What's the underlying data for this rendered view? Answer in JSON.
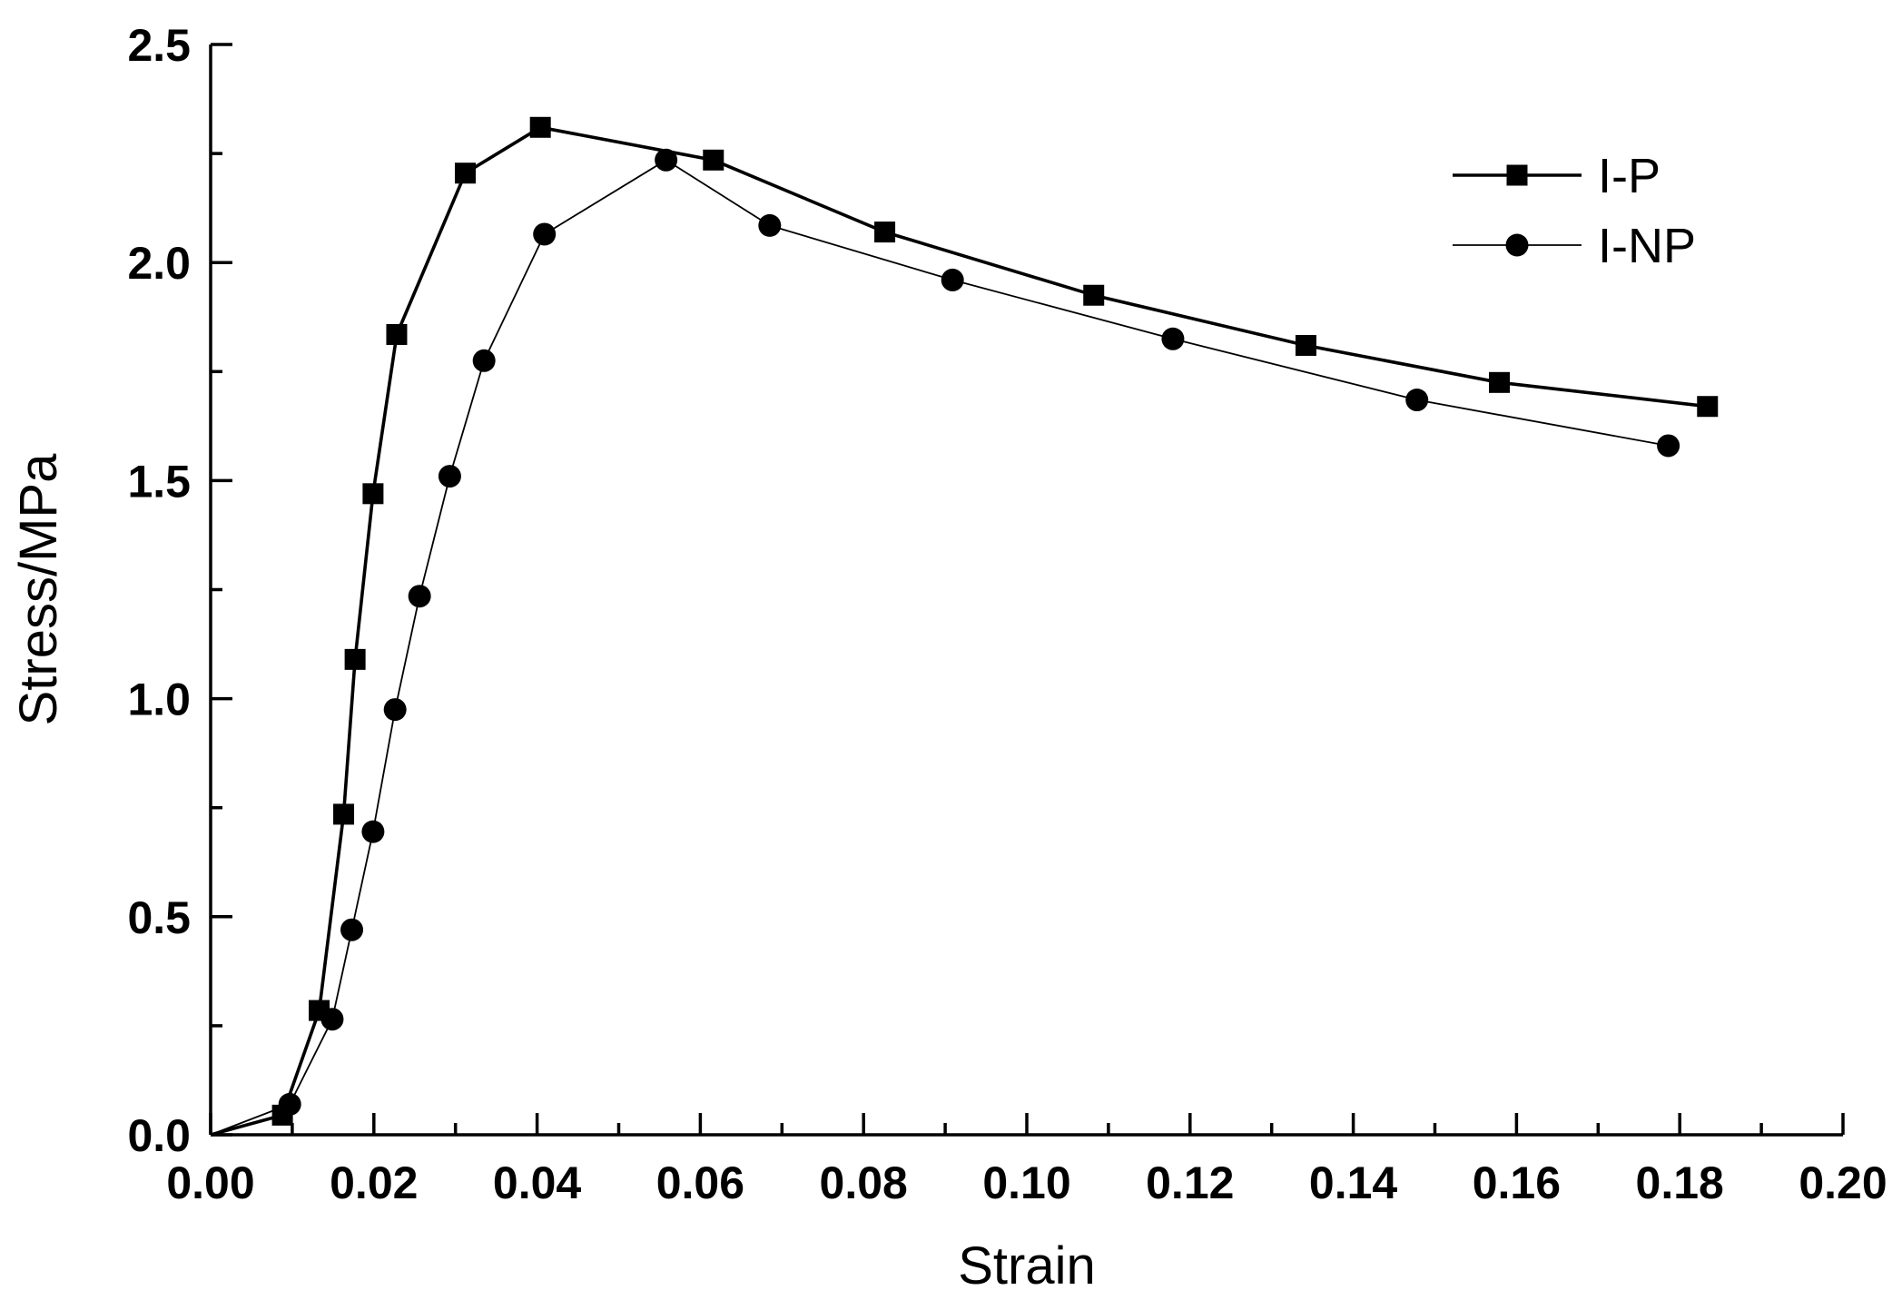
{
  "chart_data": {
    "type": "line",
    "title": "",
    "xlabel": "Strain",
    "ylabel": "Stress/MPa",
    "xlim": [
      0.0,
      0.2
    ],
    "ylim": [
      0.0,
      2.5
    ],
    "x_ticks": [
      "0.00",
      "0.02",
      "0.04",
      "0.06",
      "0.08",
      "0.10",
      "0.12",
      "0.14",
      "0.16",
      "0.18",
      "0.20"
    ],
    "x_tick_values": [
      0.0,
      0.02,
      0.04,
      0.06,
      0.08,
      0.1,
      0.12,
      0.14,
      0.16,
      0.18,
      0.2
    ],
    "x_minor_step": 0.01,
    "y_ticks": [
      "0.0",
      "0.5",
      "1.0",
      "1.5",
      "2.0",
      "2.5"
    ],
    "y_tick_values": [
      0.0,
      0.5,
      1.0,
      1.5,
      2.0,
      2.5
    ],
    "y_minor_step": 0.25,
    "grid": false,
    "legend_position": "top-right",
    "series": [
      {
        "name": "I-P",
        "marker": "square",
        "line_weight": "thick",
        "color": "#000000",
        "points": [
          [
            0.0,
            0.0
          ],
          [
            0.0088,
            0.045
          ],
          [
            0.0133,
            0.285
          ],
          [
            0.0163,
            0.735
          ],
          [
            0.0177,
            1.09
          ],
          [
            0.0199,
            1.47
          ],
          [
            0.0228,
            1.835
          ],
          [
            0.0312,
            2.205
          ],
          [
            0.0404,
            2.31
          ],
          [
            0.0616,
            2.235
          ],
          [
            0.0826,
            2.07
          ],
          [
            0.1082,
            1.925
          ],
          [
            0.1342,
            1.81
          ],
          [
            0.1579,
            1.725
          ],
          [
            0.1834,
            1.67
          ]
        ]
      },
      {
        "name": "I-NP",
        "marker": "circle",
        "line_weight": "thin",
        "color": "#000000",
        "points": [
          [
            0.0,
            0.0
          ],
          [
            0.0097,
            0.07
          ],
          [
            0.0149,
            0.265
          ],
          [
            0.0173,
            0.47
          ],
          [
            0.0199,
            0.695
          ],
          [
            0.0226,
            0.975
          ],
          [
            0.0256,
            1.235
          ],
          [
            0.0293,
            1.51
          ],
          [
            0.0335,
            1.775
          ],
          [
            0.0409,
            2.065
          ],
          [
            0.0558,
            2.235
          ],
          [
            0.0685,
            2.085
          ],
          [
            0.0909,
            1.96
          ],
          [
            0.1179,
            1.825
          ],
          [
            0.1478,
            1.685
          ],
          [
            0.1786,
            1.58
          ]
        ]
      }
    ]
  }
}
